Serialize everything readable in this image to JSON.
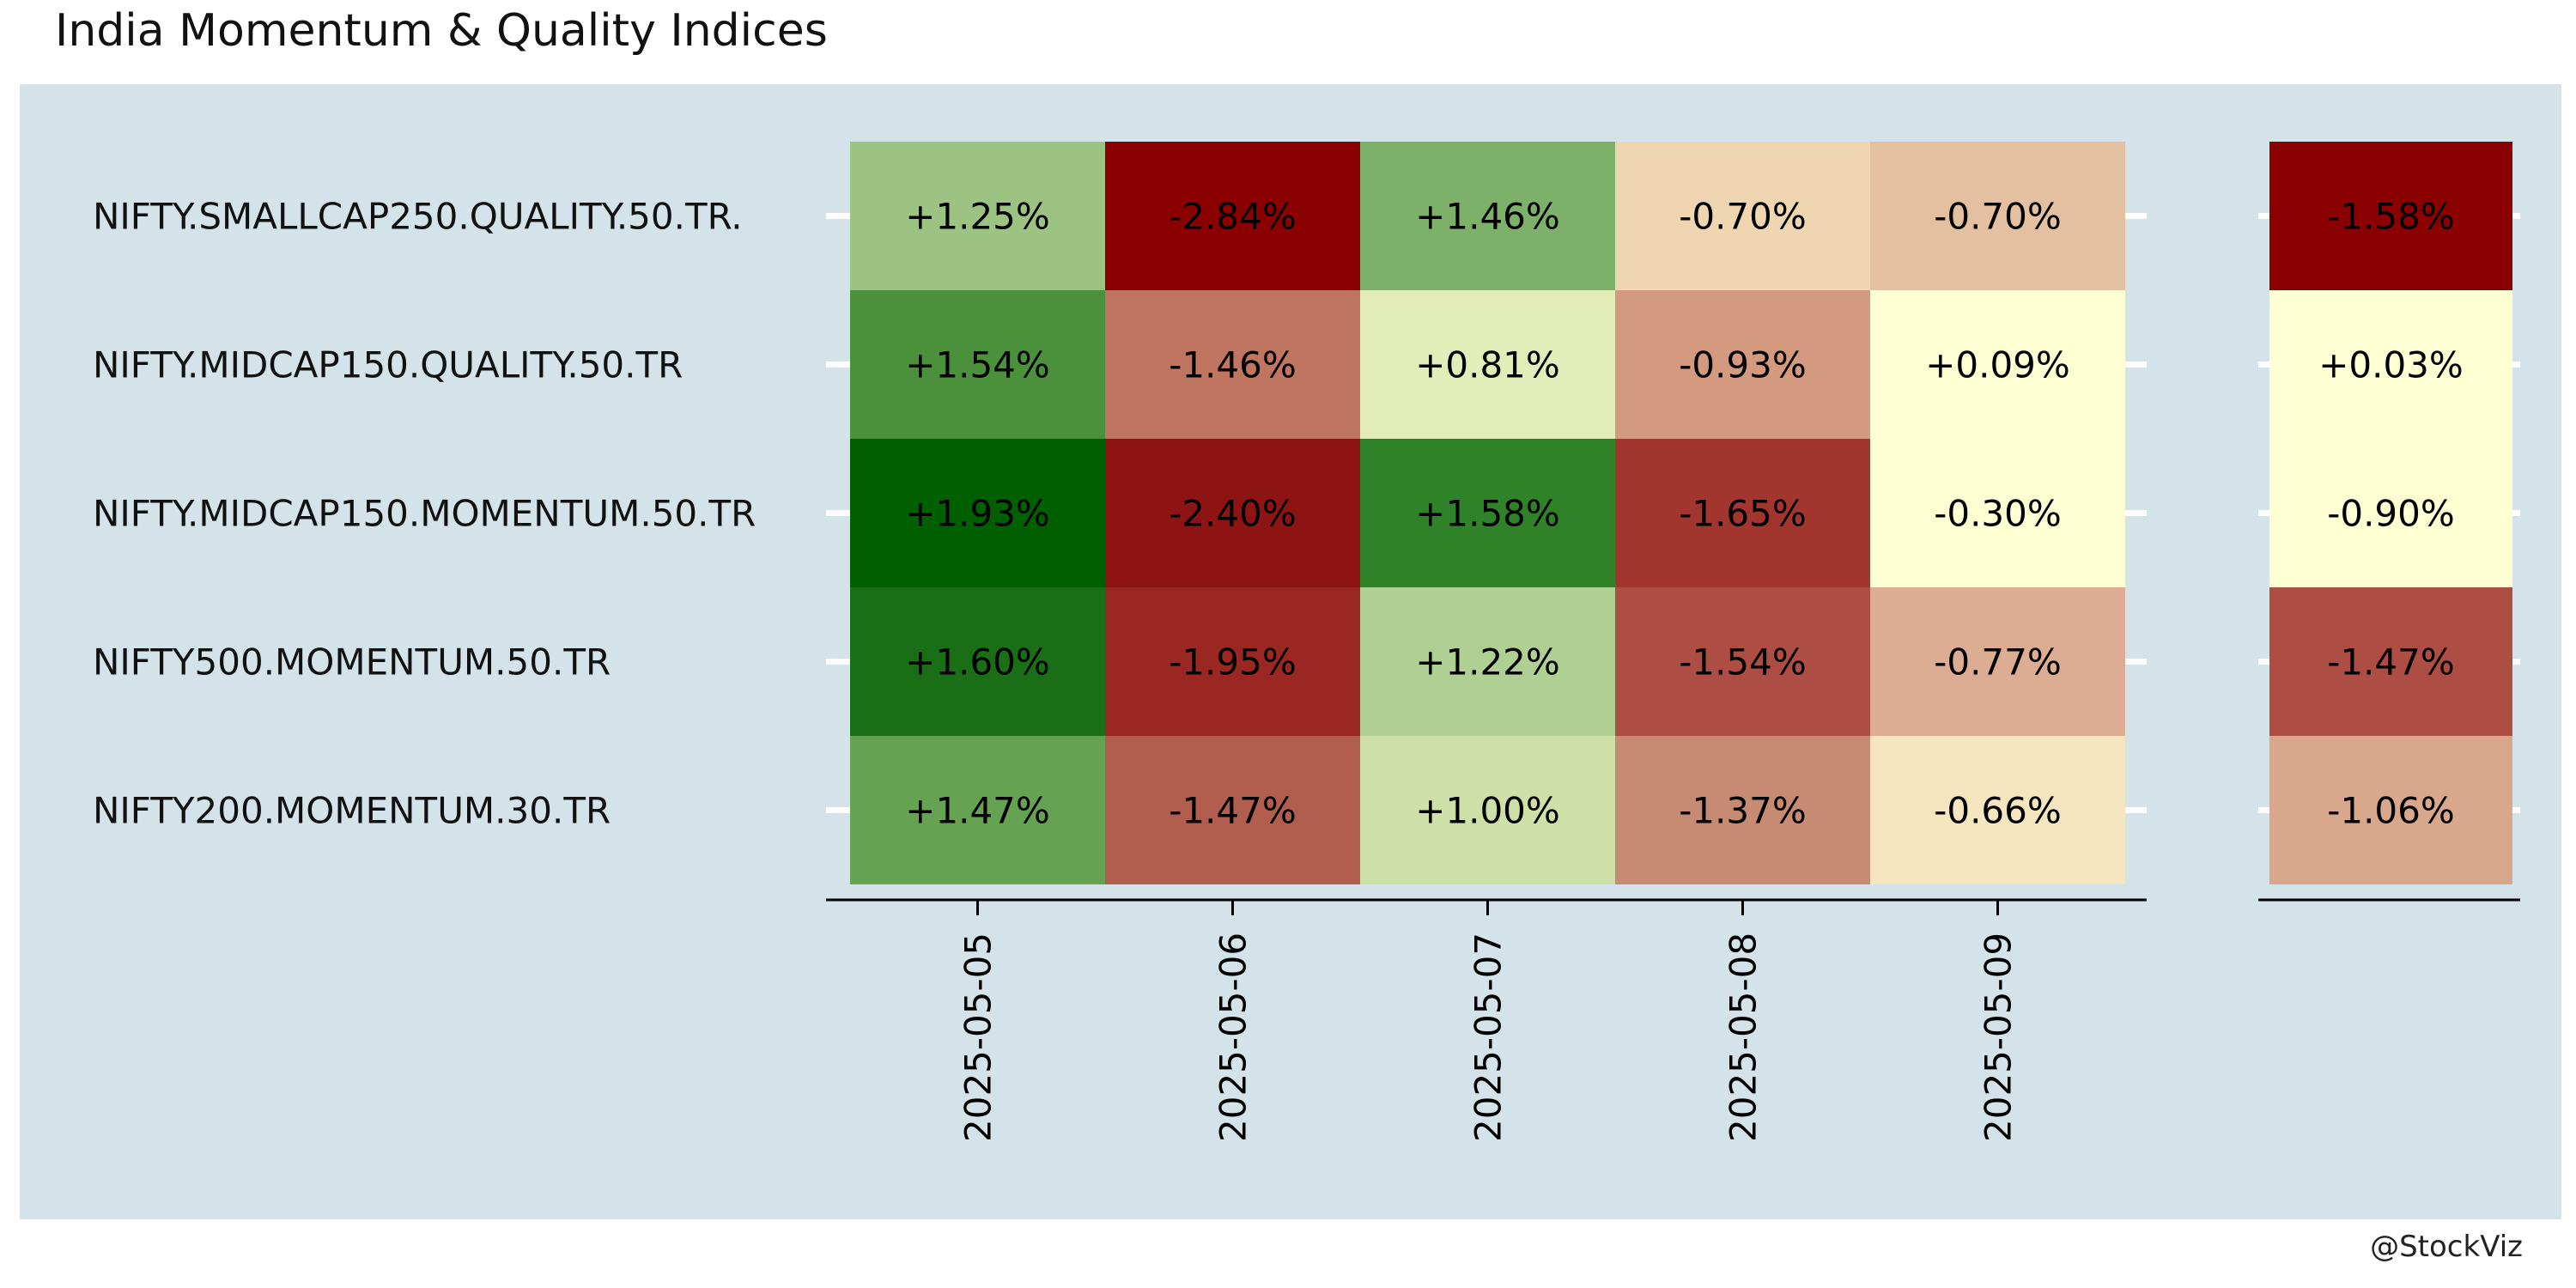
{
  "chart_data": {
    "type": "heatmap",
    "title": "India Momentum & Quality Indices",
    "credit": "@StockViz",
    "rows": [
      "NIFTY.SMALLCAP250.QUALITY.50.TR.",
      "NIFTY.MIDCAP150.QUALITY.50.TR",
      "NIFTY.MIDCAP150.MOMENTUM.50.TR",
      "NIFTY500.MOMENTUM.50.TR",
      "NIFTY200.MOMENTUM.30.TR"
    ],
    "columns": [
      "2025-05-05",
      "2025-05-06",
      "2025-05-07",
      "2025-05-08",
      "2025-05-09"
    ],
    "values": [
      [
        1.25,
        -2.84,
        1.46,
        -0.7,
        -0.7
      ],
      [
        1.54,
        -1.46,
        0.81,
        -0.93,
        0.09
      ],
      [
        1.93,
        -2.4,
        1.58,
        -1.65,
        -0.3
      ],
      [
        1.6,
        -1.95,
        1.22,
        -1.54,
        -0.77
      ],
      [
        1.47,
        -1.47,
        1.0,
        -1.37,
        -0.66
      ]
    ],
    "labels": [
      [
        "+1.25%",
        "-2.84%",
        "+1.46%",
        "-0.70%",
        "-0.70%"
      ],
      [
        "+1.54%",
        "-1.46%",
        "+0.81%",
        "-0.93%",
        "+0.09%"
      ],
      [
        "+1.93%",
        "-2.40%",
        "+1.58%",
        "-1.65%",
        "-0.30%"
      ],
      [
        "+1.60%",
        "-1.95%",
        "+1.22%",
        "-1.54%",
        "-0.77%"
      ],
      [
        "+1.47%",
        "-1.47%",
        "+1.00%",
        "-1.37%",
        "-0.66%"
      ]
    ],
    "cell_colors": [
      [
        "#9dc382",
        "#8b0000",
        "#7db068",
        "#efd6b0",
        "#e3c09f"
      ],
      [
        "#4b913c",
        "#c07560",
        "#e3edba",
        "#d39a80",
        "#ffffd4"
      ],
      [
        "#006000",
        "#8e1414",
        "#308228",
        "#a2362e",
        "#ffffd4"
      ],
      [
        "#1a6e16",
        "#9b2722",
        "#b0cf93",
        "#ae4d43",
        "#dcad92"
      ],
      [
        "#65a352",
        "#b25e4f",
        "#cfdfa8",
        "#c78a72",
        "#f6e6c0"
      ]
    ],
    "summary": {
      "values": [
        -1.58,
        0.03,
        -0.9,
        -1.47,
        -1.06
      ],
      "labels": [
        "-1.58%",
        "+0.03%",
        "-0.90%",
        "-1.47%",
        "-1.06%"
      ],
      "cell_colors": [
        "#8b0000",
        "#ffffd4",
        "#ffffd4",
        "#ae4d43",
        "#d8a78c"
      ]
    }
  }
}
